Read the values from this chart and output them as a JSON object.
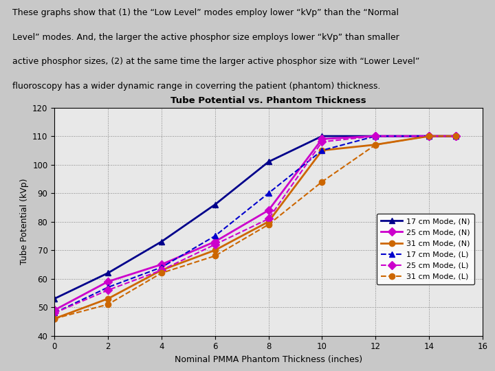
{
  "title": "Tube Potential vs. Phantom Thickness",
  "xlabel": "Nominal PMMA Phantom Thickness (inches)",
  "ylabel": "Tube Potential (kVp)",
  "xlim": [
    0,
    16
  ],
  "ylim": [
    40,
    120
  ],
  "xticks": [
    0,
    2,
    4,
    6,
    8,
    10,
    12,
    14,
    16
  ],
  "yticks": [
    40,
    50,
    60,
    70,
    80,
    90,
    100,
    110,
    120
  ],
  "bg_color": "#c8c8c8",
  "plot_bg_color": "#e8e8e8",
  "header_text_line1": "These graphs show that (1) the “Low Level” modes employ lower “kVp” than the “Normal",
  "header_text_line2": "Level” modes. And, the larger the active phosphor size employs lower “kVp” than smaller",
  "header_text_line3": "active phosphor sizes, (2) at the same time the larger active phosphor size with “Lower Level”",
  "header_text_line4": "fluoroscopy has a wider dynamic range in coverring the patient (phantom) thickness.",
  "series": [
    {
      "label": "17 cm Mode, (N)",
      "x": [
        0,
        2,
        4,
        6,
        8,
        10,
        12,
        14,
        15
      ],
      "y": [
        53,
        62,
        73,
        86,
        101,
        110,
        110,
        110,
        110
      ],
      "color": "#00008b",
      "linestyle": "solid",
      "marker": "^",
      "linewidth": 2.0
    },
    {
      "label": "25 cm Mode, (N)",
      "x": [
        0,
        2,
        4,
        6,
        8,
        10,
        12,
        14,
        15
      ],
      "y": [
        49,
        59,
        65,
        73,
        84,
        109,
        110,
        110,
        110
      ],
      "color": "#cc00cc",
      "linestyle": "solid",
      "marker": "D",
      "linewidth": 2.0
    },
    {
      "label": "31 cm Mode, (N)",
      "x": [
        0,
        2,
        4,
        6,
        8,
        10,
        12,
        14,
        15
      ],
      "y": [
        46,
        53,
        63,
        70,
        80,
        105,
        107,
        110,
        110
      ],
      "color": "#cc6600",
      "linestyle": "solid",
      "marker": "o",
      "linewidth": 2.0
    },
    {
      "label": "17 cm Mode, (L)",
      "x": [
        0,
        2,
        4,
        6,
        8,
        10,
        12,
        14,
        15
      ],
      "y": [
        48,
        57,
        64,
        75,
        90,
        105,
        110,
        110,
        110
      ],
      "color": "#0000cc",
      "linestyle": "dashed",
      "marker": "^",
      "linewidth": 1.5
    },
    {
      "label": "25 cm Mode, (L)",
      "x": [
        0,
        2,
        4,
        6,
        8,
        10,
        12,
        14,
        15
      ],
      "y": [
        48,
        56,
        63,
        72,
        81,
        108,
        110,
        110,
        110
      ],
      "color": "#cc00cc",
      "linestyle": "dashed",
      "marker": "D",
      "linewidth": 1.5
    },
    {
      "label": "31 cm Mode, (L)",
      "x": [
        0,
        2,
        4,
        6,
        8,
        10,
        12,
        14,
        15
      ],
      "y": [
        46,
        51,
        62,
        68,
        79,
        94,
        107,
        110,
        110
      ],
      "color": "#cc6600",
      "linestyle": "dashed",
      "marker": "o",
      "linewidth": 1.5
    }
  ]
}
